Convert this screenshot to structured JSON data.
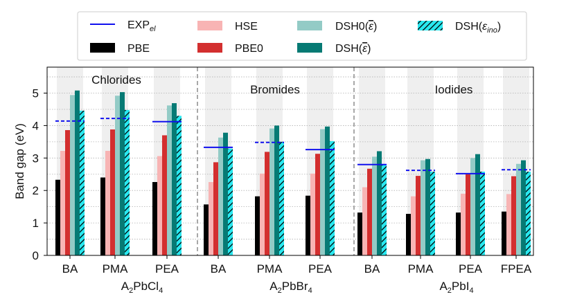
{
  "chart_data": {
    "type": "bar",
    "ylabel": "Band gap (eV)",
    "ylim": [
      0,
      5.8
    ],
    "yticks": [
      0,
      1,
      2,
      3,
      4,
      5
    ],
    "grid": "horizontal dotted",
    "legend_position": "top-center",
    "groups": [
      {
        "name": "A2PbCl4",
        "label_main": "A",
        "label_sub1": "2",
        "label_mid": "PbCl",
        "label_sub2": "4",
        "panel_title": "Chlorides",
        "categories": [
          "BA",
          "PMA",
          "PEA"
        ]
      },
      {
        "name": "A2PbBr4",
        "label_main": "A",
        "label_sub1": "2",
        "label_mid": "PbBr",
        "label_sub2": "4",
        "panel_title": "Bromides",
        "categories": [
          "BA",
          "PMA",
          "PEA"
        ]
      },
      {
        "name": "A2PbI4",
        "label_main": "A",
        "label_sub1": "2",
        "label_mid": "PbI",
        "label_sub2": "4",
        "panel_title": "Iodides",
        "categories": [
          "BA",
          "PMA",
          "PEA",
          "FPEA"
        ]
      }
    ],
    "categories": [
      "BA",
      "PMA",
      "PEA",
      "BA",
      "PMA",
      "PEA",
      "BA",
      "PMA",
      "PEA",
      "FPEA"
    ],
    "series": [
      {
        "name": "PBE",
        "label": "PBE",
        "color": "#000000",
        "values": [
          2.33,
          2.4,
          2.26,
          1.57,
          1.82,
          1.84,
          1.32,
          1.28,
          1.32,
          1.35
        ]
      },
      {
        "name": "HSE",
        "label": "HSE",
        "color": "#f8b4b4",
        "values": [
          3.22,
          3.22,
          3.06,
          2.26,
          2.52,
          2.52,
          2.1,
          1.82,
          1.9,
          1.89
        ]
      },
      {
        "name": "PBE0",
        "label": "PBE0",
        "color": "#d32f2f",
        "values": [
          3.86,
          3.88,
          3.7,
          2.87,
          3.19,
          3.13,
          2.67,
          2.45,
          2.5,
          2.44
        ]
      },
      {
        "name": "DSH0",
        "label": "DSH0",
        "color": "#93cbc6",
        "values": [
          4.94,
          4.92,
          4.62,
          3.63,
          3.91,
          3.89,
          3.04,
          2.93,
          3.0,
          2.82
        ]
      },
      {
        "name": "DSH",
        "label": "DSH",
        "color": "#067a74",
        "values": [
          5.08,
          5.03,
          4.69,
          3.78,
          4.0,
          3.97,
          3.21,
          2.97,
          3.12,
          2.93
        ]
      },
      {
        "name": "DSH_ino",
        "label": "DSH",
        "color": "#29e8f0",
        "values": [
          4.46,
          4.48,
          4.3,
          3.29,
          3.5,
          3.52,
          2.8,
          2.58,
          2.58,
          2.58
        ]
      }
    ],
    "exp_el": {
      "name": "EXP_el",
      "label_main": "EXP",
      "label_sub": "el",
      "color": "#1010ee",
      "values": [
        4.14,
        4.22,
        4.12,
        3.33,
        3.48,
        3.26,
        2.8,
        2.62,
        2.52,
        2.64
      ],
      "style": [
        "dashed",
        "dashed",
        "solid",
        "solid",
        "dashed",
        "solid",
        "solid",
        "dashed",
        "solid",
        "dashed"
      ]
    },
    "legend_math": {
      "bar": "ε",
      "ino_open": "(",
      "ino_eps": "ε",
      "ino_sub": "ino",
      "ino_close": ")"
    }
  }
}
